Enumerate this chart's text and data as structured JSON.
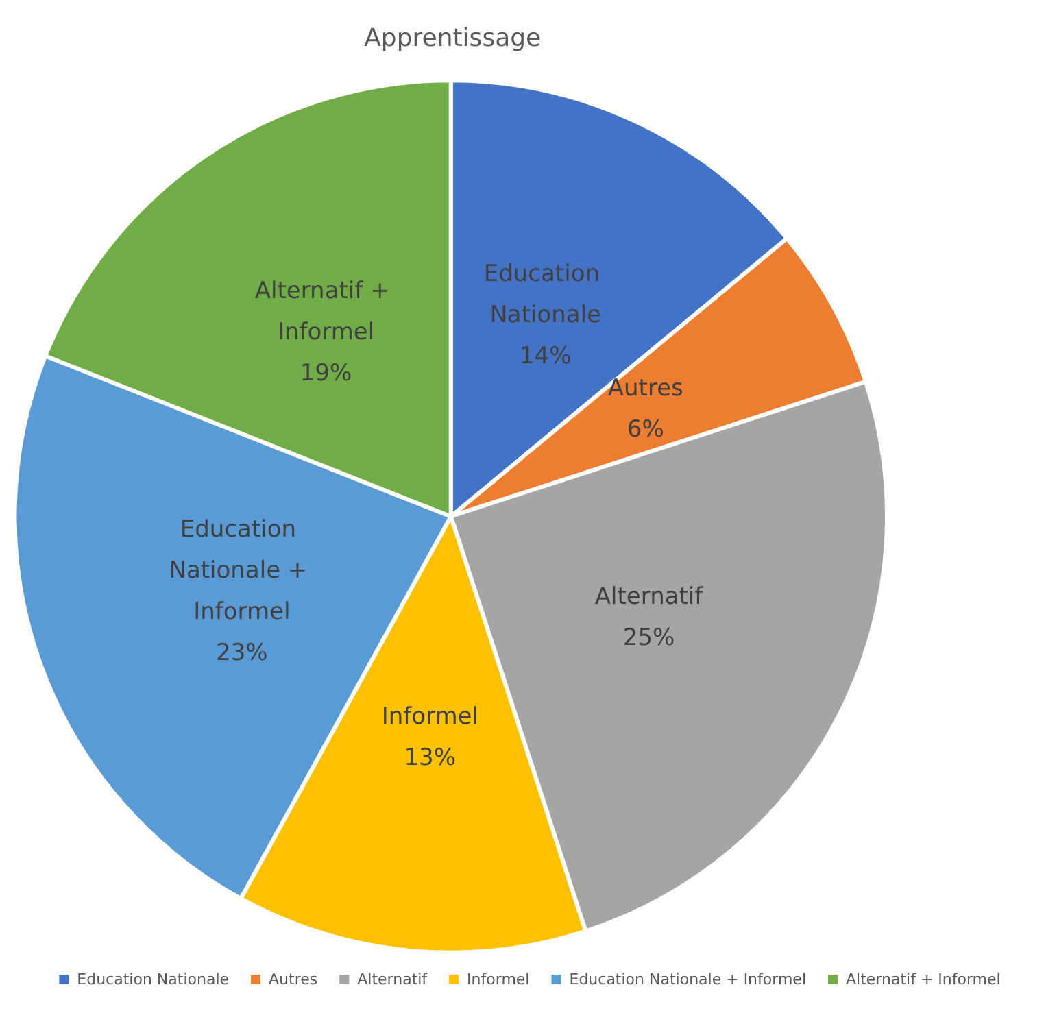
{
  "chart_data": {
    "type": "pie",
    "title": "Apprentissage",
    "categories": [
      "Education Nationale",
      "Autres",
      "Alternatif",
      "Informel",
      "Education Nationale + Informel",
      "Alternatif + Informel"
    ],
    "values": [
      14,
      6,
      25,
      13,
      23,
      19
    ],
    "value_labels": [
      "14%",
      "6%",
      "25%",
      "13%",
      "23%",
      "19%"
    ],
    "colors": [
      "#4472c4",
      "#ed7d31",
      "#a5a5a5",
      "#ffc000",
      "#5b9bd5",
      "#70ad47"
    ],
    "legend": "bottom"
  }
}
